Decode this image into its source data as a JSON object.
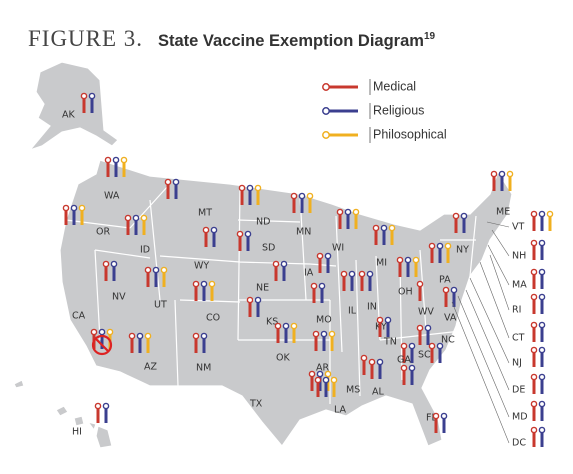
{
  "title": {
    "figure": "FIGURE 3.",
    "text": "State Vaccine Exemption Diagram",
    "superscript": "19"
  },
  "legend": [
    {
      "label": "Medical",
      "color": "#c8382e"
    },
    {
      "label": "Religious",
      "color": "#3b3f8f"
    },
    {
      "label": "Philosophical",
      "color": "#f0b020"
    }
  ],
  "states": [
    {
      "label": "AK",
      "exemptions": [
        true,
        true,
        false
      ]
    },
    {
      "label": "WA",
      "exemptions": [
        true,
        true,
        true
      ]
    },
    {
      "label": "OR",
      "exemptions": [
        true,
        true,
        true
      ]
    },
    {
      "label": "ID",
      "exemptions": [
        true,
        true,
        true
      ]
    },
    {
      "label": "MT",
      "exemptions": [
        true,
        true,
        false
      ]
    },
    {
      "label": "WY",
      "exemptions": [
        true,
        true,
        false
      ]
    },
    {
      "label": "NV",
      "exemptions": [
        true,
        true,
        false
      ]
    },
    {
      "label": "UT",
      "exemptions": [
        true,
        true,
        true
      ]
    },
    {
      "label": "CA",
      "exemptions": [
        true,
        true,
        true
      ]
    },
    {
      "label": "AZ",
      "exemptions": [
        true,
        true,
        true
      ]
    },
    {
      "label": "CO",
      "exemptions": [
        true,
        true,
        true
      ]
    },
    {
      "label": "NM",
      "exemptions": [
        true,
        true,
        false
      ]
    },
    {
      "label": "ND",
      "exemptions": [
        true,
        true,
        true
      ]
    },
    {
      "label": "SD",
      "exemptions": [
        true,
        true,
        false
      ]
    },
    {
      "label": "NE",
      "exemptions": [
        true,
        true,
        false
      ]
    },
    {
      "label": "KS",
      "exemptions": [
        true,
        true,
        false
      ]
    },
    {
      "label": "OK",
      "exemptions": [
        true,
        true,
        true
      ]
    },
    {
      "label": "TX",
      "exemptions": [
        true,
        true,
        true
      ]
    },
    {
      "label": "MN",
      "exemptions": [
        true,
        true,
        true
      ]
    },
    {
      "label": "IA",
      "exemptions": [
        true,
        true,
        false
      ]
    },
    {
      "label": "MO",
      "exemptions": [
        true,
        true,
        false
      ]
    },
    {
      "label": "AR",
      "exemptions": [
        true,
        true,
        true
      ]
    },
    {
      "label": "LA",
      "exemptions": [
        true,
        true,
        true
      ]
    },
    {
      "label": "WI",
      "exemptions": [
        true,
        true,
        true
      ]
    },
    {
      "label": "IL",
      "exemptions": [
        true,
        true,
        false
      ]
    },
    {
      "label": "MS",
      "exemptions": [
        true,
        false,
        false
      ]
    },
    {
      "label": "MI",
      "exemptions": [
        true,
        true,
        true
      ]
    },
    {
      "label": "IN",
      "exemptions": [
        true,
        true,
        false
      ]
    },
    {
      "label": "OH",
      "exemptions": [
        true,
        true,
        true
      ]
    },
    {
      "label": "KY",
      "exemptions": [
        true,
        true,
        false
      ]
    },
    {
      "label": "TN",
      "exemptions": [
        true,
        true,
        false
      ]
    },
    {
      "label": "AL",
      "exemptions": [
        true,
        true,
        false
      ]
    },
    {
      "label": "GA",
      "exemptions": [
        true,
        true,
        false
      ]
    },
    {
      "label": "FL",
      "exemptions": [
        true,
        true,
        false
      ]
    },
    {
      "label": "SC",
      "exemptions": [
        true,
        true,
        false
      ]
    },
    {
      "label": "NC",
      "exemptions": [
        true,
        true,
        false
      ]
    },
    {
      "label": "VA",
      "exemptions": [
        true,
        true,
        false
      ]
    },
    {
      "label": "WV",
      "exemptions": [
        true,
        false,
        false
      ]
    },
    {
      "label": "PA",
      "exemptions": [
        true,
        true,
        true
      ]
    },
    {
      "label": "NY",
      "exemptions": [
        true,
        true,
        false
      ]
    },
    {
      "label": "ME",
      "exemptions": [
        true,
        true,
        true
      ]
    },
    {
      "label": "VT",
      "exemptions": [
        true,
        true,
        true
      ]
    },
    {
      "label": "NH",
      "exemptions": [
        true,
        true,
        false
      ]
    },
    {
      "label": "MA",
      "exemptions": [
        true,
        true,
        false
      ]
    },
    {
      "label": "RI",
      "exemptions": [
        true,
        true,
        false
      ]
    },
    {
      "label": "CT",
      "exemptions": [
        true,
        true,
        false
      ]
    },
    {
      "label": "NJ",
      "exemptions": [
        true,
        true,
        false
      ]
    },
    {
      "label": "DE",
      "exemptions": [
        true,
        true,
        false
      ]
    },
    {
      "label": "MD",
      "exemptions": [
        true,
        true,
        false
      ]
    },
    {
      "label": "DC",
      "exemptions": [
        true,
        true,
        false
      ]
    },
    {
      "label": "HI",
      "exemptions": [
        true,
        true,
        false
      ]
    }
  ]
}
